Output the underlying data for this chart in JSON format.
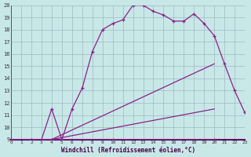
{
  "xlabel": "Windchill (Refroidissement éolien,°C)",
  "bg_color": "#c8e8e8",
  "grid_color": "#a0b8c0",
  "line_color": "#882288",
  "xmin": 0,
  "xmax": 23,
  "ymin": 9,
  "ymax": 20,
  "line1_x": [
    0,
    1,
    2,
    3,
    4,
    5,
    6,
    7,
    8,
    9,
    10,
    11,
    12,
    13,
    14,
    15,
    16,
    17,
    18,
    19,
    20,
    21,
    22,
    23
  ],
  "line1_y": [
    9.0,
    8.8,
    9.0,
    9.0,
    11.5,
    9.0,
    11.5,
    13.2,
    16.2,
    18.0,
    18.5,
    18.8,
    20.0,
    20.0,
    19.5,
    19.2,
    18.7,
    18.7,
    19.3,
    18.5,
    17.5,
    15.2,
    13.0,
    11.2
  ],
  "line2_x": [
    0,
    1,
    2,
    3,
    4,
    5,
    10,
    20
  ],
  "line2_y": [
    9.0,
    8.8,
    9.0,
    9.0,
    9.0,
    9.0,
    9.0,
    9.0
  ],
  "line3_x": [
    0,
    4,
    20
  ],
  "line3_y": [
    9.0,
    9.0,
    15.2
  ],
  "line4_x": [
    0,
    4,
    20
  ],
  "line4_y": [
    9.0,
    9.0,
    11.5
  ]
}
